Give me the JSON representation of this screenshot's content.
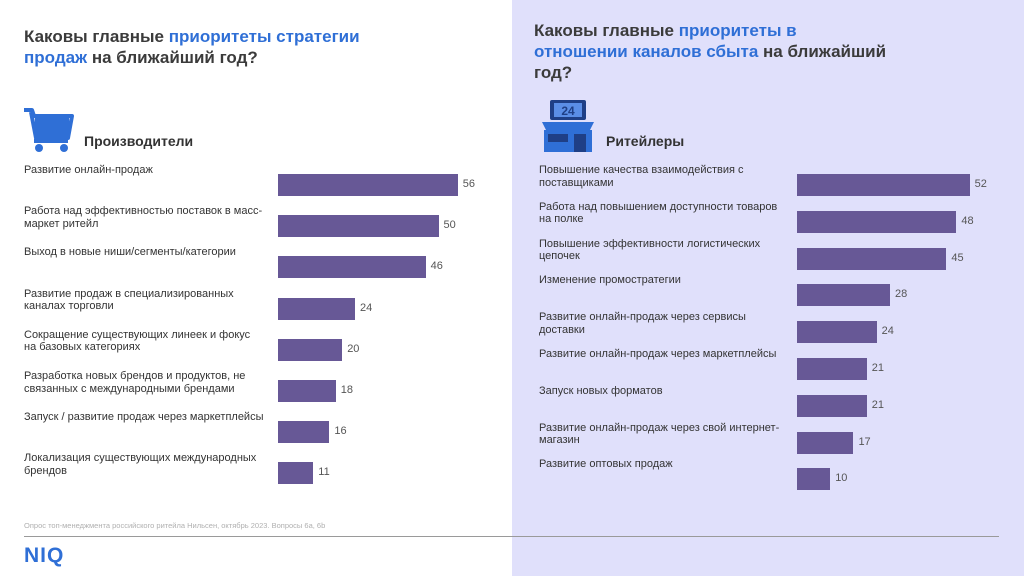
{
  "left": {
    "title_parts": [
      "Каковы главные ",
      "приоритеты стратегии продаж",
      " на ближайший год?"
    ],
    "group": "Производители",
    "icon": "shopping-cart-icon"
  },
  "right": {
    "title_parts": [
      "Каковы главные ",
      "приоритеты в отношении каналов сбыта",
      " на ближайший год?"
    ],
    "group": "Ритейлеры",
    "icon": "store-24-icon",
    "icon_text": "24"
  },
  "chart_data": [
    {
      "type": "bar",
      "orientation": "horizontal",
      "categories": [
        "Развитие онлайн-продаж",
        "Работа над эффективностью поставок в масс-маркет ритейл",
        "Выход в новые ниши/сегменты/категории",
        "Развитие продаж в специализированных каналах торговли",
        "Сокращение существующих линеек и фокус на базовых категориях",
        "Разработка новых брендов и продуктов, не связанных с международными брендами",
        "Запуск / развитие продаж через маркетплейсы",
        "Локализация существующих международных брендов"
      ],
      "values": [
        56,
        50,
        46,
        24,
        20,
        18,
        16,
        11
      ],
      "value_labels": [
        "56",
        "50",
        "46",
        "24",
        "20",
        "18",
        "16",
        "11"
      ],
      "bar_color": "#675896"
    },
    {
      "type": "bar",
      "orientation": "horizontal",
      "categories": [
        "Повышение качества взаимодействия с поставщиками",
        "Работа над повышением доступности товаров на полке",
        "Повышение эффективности логистических цепочек",
        "Изменение промостратегии",
        "Развитие онлайн-продаж через сервисы доставки",
        "Развитие онлайн-продаж через маркетплейсы",
        "Запуск новых форматов",
        "Развитие онлайн-продаж через свой интернет-магазин",
        "Развитие оптовых продаж"
      ],
      "values": [
        52,
        48,
        45,
        28,
        24,
        21,
        21,
        17,
        10
      ],
      "value_labels": [
        "52",
        "48",
        "45",
        "28",
        "24",
        "21",
        "21",
        "17",
        "10"
      ],
      "bar_color": "#675896"
    }
  ],
  "footer": {
    "note": "Опрос топ-менеджмента российского ритейла Нильсен, октябрь 2023. Вопросы 6a, 6b",
    "logo": "NIQ"
  },
  "colors": {
    "accent": "#2f6fd6",
    "bar": "#675896",
    "right_panel": "#e0e0fb"
  }
}
